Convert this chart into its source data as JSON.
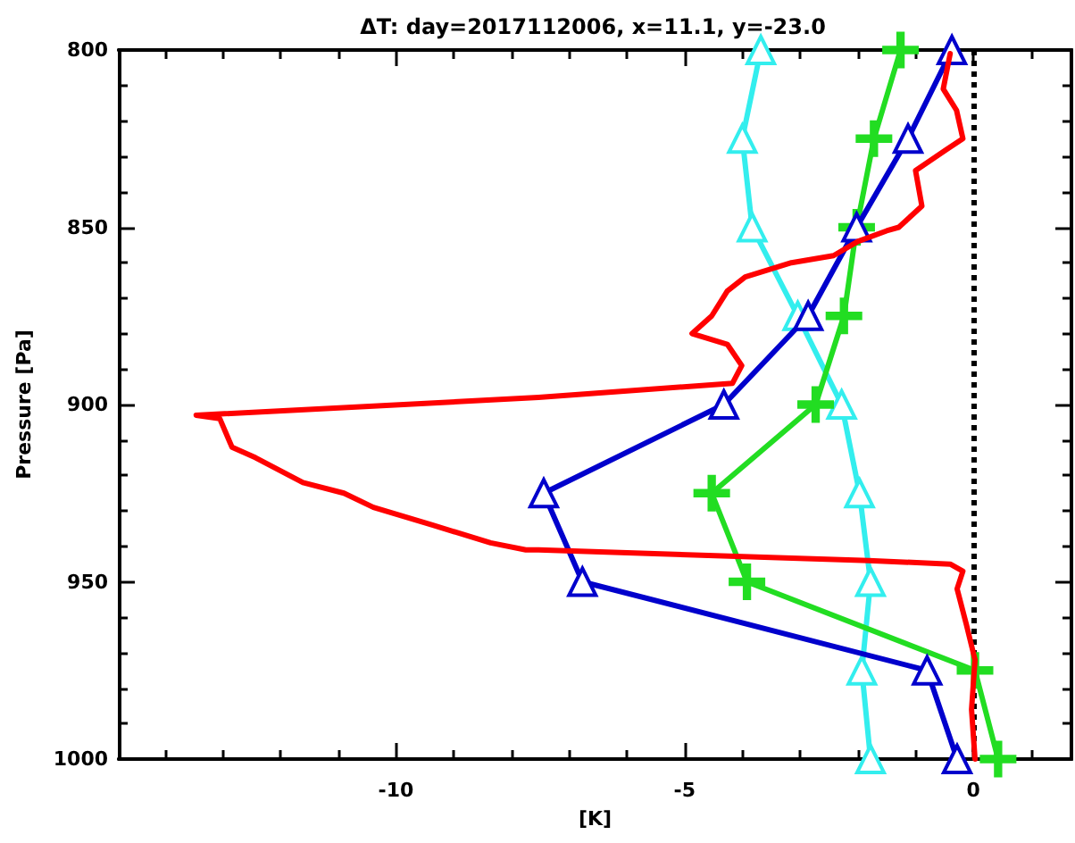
{
  "chart_data": {
    "type": "line",
    "title": "ΔT: day=2017112006, x=11.1, y=-23.0",
    "xlabel": "[K]",
    "ylabel": "Pressure [Pa]",
    "xlim": [
      -14.8,
      1.7
    ],
    "ylim": [
      1000,
      800
    ],
    "xticks": [
      {
        "value": -14,
        "label": null
      },
      {
        "value": -13,
        "label": null
      },
      {
        "value": -12,
        "label": null
      },
      {
        "value": -11,
        "label": null
      },
      -10,
      {
        "value": -9,
        "label": null
      },
      {
        "value": -8,
        "label": null
      },
      {
        "value": -7,
        "label": null
      },
      {
        "value": -6,
        "label": null
      },
      -5,
      {
        "value": -4,
        "label": null
      },
      {
        "value": -3,
        "label": null
      },
      {
        "value": -2,
        "label": null
      },
      {
        "value": -1,
        "label": null
      },
      0,
      {
        "value": 1,
        "label": null
      }
    ],
    "yticks": [
      800,
      {
        "value": 810,
        "label": null
      },
      {
        "value": 820,
        "label": null
      },
      {
        "value": 830,
        "label": null
      },
      {
        "value": 840,
        "label": null
      },
      850,
      {
        "value": 860,
        "label": null
      },
      {
        "value": 870,
        "label": null
      },
      {
        "value": 880,
        "label": null
      },
      {
        "value": 890,
        "label": null
      },
      900,
      {
        "value": 910,
        "label": null
      },
      {
        "value": 920,
        "label": null
      },
      {
        "value": 930,
        "label": null
      },
      {
        "value": 940,
        "label": null
      },
      950,
      {
        "value": 960,
        "label": null
      },
      {
        "value": 970,
        "label": null
      },
      {
        "value": 980,
        "label": null
      },
      {
        "value": 990,
        "label": null
      },
      1000
    ],
    "grid": false,
    "ref_lines": [
      {
        "axis": "x",
        "value": 0,
        "color": "#000000",
        "line_style": "dotted"
      }
    ],
    "series": [
      {
        "color": "#ff0000",
        "marker": "none",
        "x": [
          -0.4,
          -0.52,
          -0.29,
          -0.18,
          -0.46,
          -1.0,
          -0.89,
          -1.29,
          -1.5,
          -2.0,
          -2.42,
          -3.15,
          -3.95,
          -4.26,
          -4.53,
          -4.87,
          -4.26,
          -4.01,
          -4.17,
          -7.53,
          -13.46,
          -13.05,
          -12.84,
          -12.43,
          -11.61,
          -10.9,
          -10.39,
          -9.37,
          -8.36,
          -7.75,
          -7.53,
          -1.81,
          -0.4,
          -0.18,
          -0.28,
          -0.12,
          0.03,
          -0.03,
          0.03
        ],
        "values": [
          801,
          811,
          817,
          825,
          828,
          834,
          844,
          850,
          851,
          854,
          858,
          860,
          864,
          868,
          875,
          880,
          883,
          889,
          894,
          898,
          903,
          904,
          912,
          915,
          922,
          925,
          929,
          934,
          939,
          941,
          941,
          944,
          945,
          947,
          952,
          962,
          972,
          986,
          1000
        ]
      },
      {
        "color": "#0000cc",
        "marker": "triangle",
        "x": [
          -0.37,
          -1.13,
          -2.02,
          -2.86,
          -4.32,
          -7.44,
          -6.77,
          -0.8,
          -0.28
        ],
        "values": [
          800,
          825,
          850,
          875,
          900,
          925,
          950,
          975,
          1000
        ]
      },
      {
        "color": "#22dd22",
        "marker": "cross",
        "x": [
          -1.26,
          -1.72,
          -2.02,
          -2.24,
          -2.73,
          -4.53,
          -3.92,
          0.03,
          0.43
        ],
        "values": [
          800,
          825,
          850,
          875,
          900,
          925,
          950,
          975,
          1000
        ]
      },
      {
        "color": "#33eeee",
        "marker": "triangle",
        "x": [
          -3.68,
          -4.0,
          -3.83,
          -3.04,
          -2.28,
          -1.97,
          -1.78,
          -1.93,
          -1.78
        ],
        "values": [
          800,
          825,
          850,
          875,
          900,
          925,
          950,
          975,
          1000
        ]
      }
    ]
  }
}
